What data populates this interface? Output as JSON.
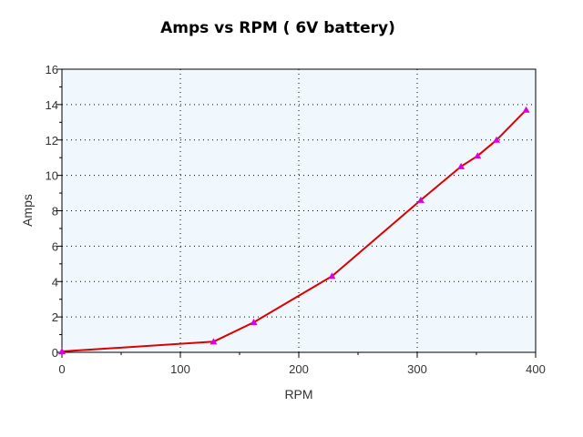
{
  "chart_data": {
    "type": "line",
    "title": "Amps vs RPM ( 6V battery)",
    "xlabel": "RPM",
    "ylabel": "Amps",
    "xlim": [
      0,
      400
    ],
    "ylim": [
      0,
      16
    ],
    "x_ticks": [
      0,
      100,
      200,
      300,
      400
    ],
    "y_ticks": [
      0,
      2,
      4,
      6,
      8,
      10,
      12,
      14,
      16
    ],
    "grid": true,
    "legend": "none",
    "series": [
      {
        "x": [
          0,
          128,
          162,
          228,
          303,
          337,
          351,
          367,
          392
        ],
        "y": [
          0.05,
          0.6,
          1.7,
          4.3,
          8.6,
          10.5,
          11.1,
          12.0,
          13.7
        ]
      }
    ],
    "colors": {
      "line": "#dd0000",
      "marker": "#dd00dd",
      "plot_background": "#f0f8fe",
      "grid": "#000000",
      "axis": "#000000"
    }
  }
}
